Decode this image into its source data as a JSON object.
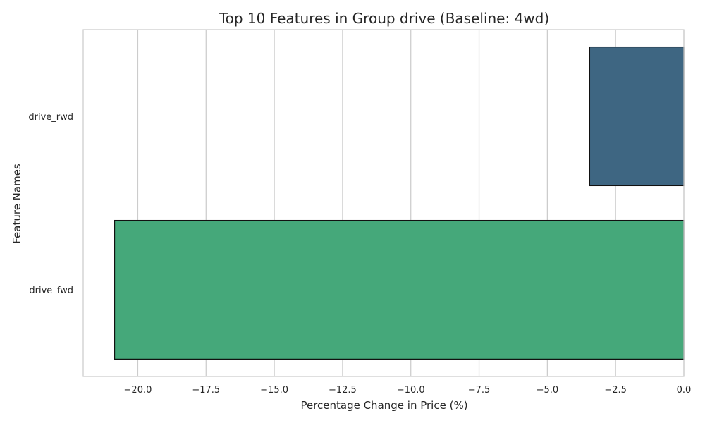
{
  "chart_data": {
    "type": "bar",
    "orientation": "horizontal",
    "title": "Top 10 Features in Group drive (Baseline: 4wd)",
    "xlabel": "Percentage Change in Price (%)",
    "ylabel": "Feature Names",
    "categories": [
      "drive_rwd",
      "drive_fwd"
    ],
    "values": [
      -3.45,
      -20.85
    ],
    "colors": [
      "#3e6682",
      "#45a87a"
    ],
    "edge_color": "#111111",
    "xlim": [
      -22.0,
      0.0
    ],
    "xticks": [
      -20.0,
      -17.5,
      -15.0,
      -12.5,
      -10.0,
      -7.5,
      -5.0,
      -2.5,
      0.0
    ],
    "xtick_labels": [
      "−20.0",
      "−17.5",
      "−15.0",
      "−12.5",
      "−10.0",
      "−7.5",
      "−5.0",
      "−2.5",
      "0.0"
    ],
    "grid": "vertical",
    "grid_color": "#cccccc",
    "background": "#ffffff"
  }
}
